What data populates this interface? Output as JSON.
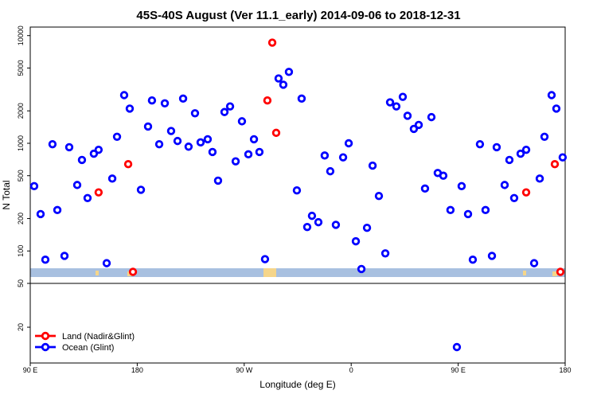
{
  "chart_data": {
    "type": "scatter",
    "title": "45S-40S August (Ver 11.1_early)   2014-09-06 to 2018-12-31",
    "x_label": "Longitude (deg E)",
    "y_label": "N Total",
    "xlim": [
      90,
      540
    ],
    "xticks": [
      {
        "value": 90,
        "label": "90 E"
      },
      180,
      {
        "value": 270,
        "label": "90 W"
      },
      {
        "value": 360,
        "label": "0"
      },
      {
        "value": 450,
        "label": "90 E"
      },
      {
        "value": 540,
        "label": "180"
      }
    ],
    "ylim": [
      50,
      12000
    ],
    "yscale": "log",
    "yticks": [
      100,
      200,
      500,
      1000,
      2000,
      5000,
      10000
    ],
    "y2lim": [
      -4.5,
      50
    ],
    "y2ticks": [
      20,
      50
    ],
    "legend_position": "bottom-left",
    "series": [
      {
        "name": "Land (Nadir&Glint)",
        "color": "#ff0000",
        "x": [
          147.5,
          172.4,
          176.4,
          289.5,
          293.6,
          296.9,
          507.2,
          531.3,
          536
        ],
        "values": [
          350,
          640,
          64,
          2500,
          8600,
          1250,
          350,
          640,
          64
        ]
      },
      {
        "name": "Ocean (Glint)",
        "color": "#0000ff",
        "x": [
          93.3,
          98.7,
          102.7,
          108.7,
          112.8,
          118.8,
          122.8,
          129.5,
          133.5,
          138.2,
          143.5,
          147.5,
          154.3,
          159,
          163,
          169,
          173.7,
          183.1,
          189.1,
          192.4,
          198.5,
          203.2,
          208.5,
          213.9,
          218.6,
          223.2,
          228.6,
          233.3,
          239.3,
          243.3,
          248,
          253.4,
          258.1,
          262.8,
          268.1,
          273.5,
          278.2,
          282.8,
          287.5,
          298.9,
          302.9,
          307.6,
          314.3,
          318.3,
          323,
          327,
          332.4,
          337.7,
          342.4,
          347.1,
          353.2,
          357.9,
          363.9,
          368.6,
          373.3,
          378,
          383.3,
          388.7,
          392.7,
          398,
          403.4,
          407.4,
          412.7,
          416.8,
          422.1,
          427.5,
          432.8,
          437.5,
          443.5,
          448.9,
          452.9,
          458.3,
          462.3,
          468.3,
          473,
          478.4,
          482.4,
          489.1,
          493.1,
          497.1,
          502.5,
          507.2,
          513.9,
          518.6,
          522.6,
          528.6,
          532.6,
          537.9
        ],
        "values": [
          400,
          220,
          83,
          980,
          240,
          90,
          920,
          410,
          700,
          310,
          800,
          870,
          77,
          470,
          1150,
          2800,
          2100,
          370,
          1430,
          2500,
          980,
          2350,
          1300,
          1050,
          2600,
          930,
          1900,
          1020,
          1090,
          830,
          450,
          1950,
          2200,
          680,
          1600,
          790,
          1090,
          830,
          84,
          4000,
          3500,
          4600,
          365,
          2600,
          167,
          212,
          185,
          770,
          550,
          175,
          740,
          1000,
          123,
          68,
          164,
          620,
          324,
          95,
          2400,
          2200,
          2700,
          1800,
          1360,
          1480,
          380,
          1750,
          530,
          500,
          240,
          6.4,
          400,
          220,
          83,
          980,
          240,
          90,
          920,
          410,
          700,
          310,
          800,
          870,
          77,
          470,
          1150,
          2800,
          2100,
          740
        ]
      }
    ]
  }
}
